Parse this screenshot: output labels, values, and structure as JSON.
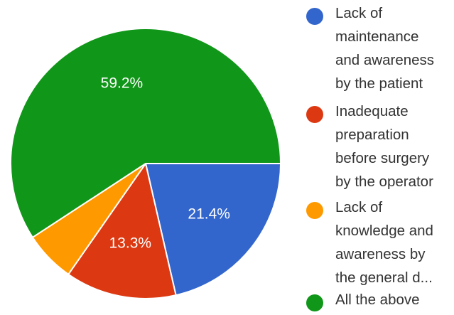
{
  "chart_data": {
    "type": "pie",
    "slices": [
      {
        "label": "Lack of\nmaintenance\nand awareness\nby the patient",
        "value": 21.4,
        "display": "21.4%",
        "color": "#3366cc"
      },
      {
        "label": "Inadequate\npreparation\nbefore surgery\nby the operator",
        "value": 13.3,
        "display": "13.3%",
        "color": "#dc3912"
      },
      {
        "label": "Lack of\nknowledge and\nawareness by\nthe general d...",
        "value": 6.1,
        "display": "",
        "color": "#ff9900"
      },
      {
        "label": "All the above",
        "value": 59.2,
        "display": "59.2%",
        "color": "#109618"
      }
    ],
    "legend_position": "right"
  }
}
